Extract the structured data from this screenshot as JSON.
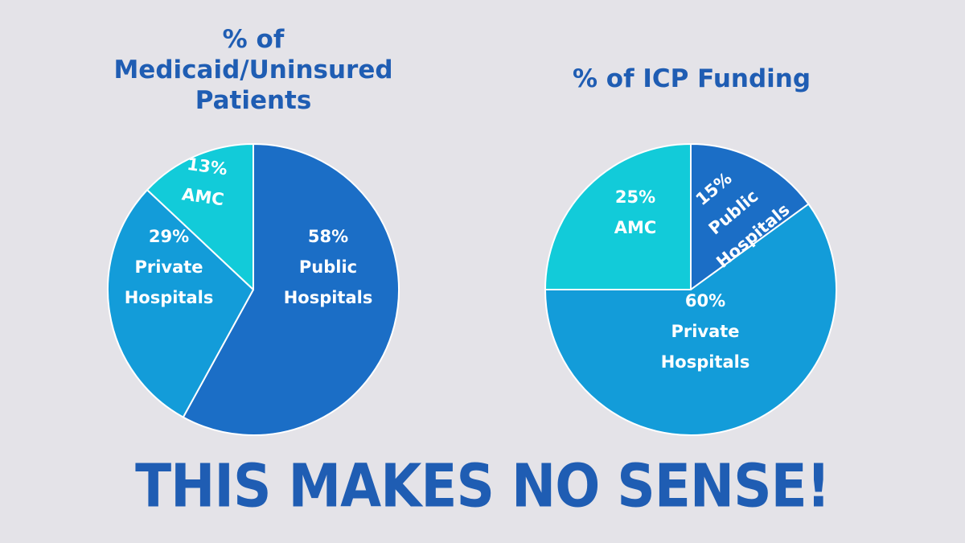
{
  "chart_data": [
    {
      "type": "pie",
      "title": "% of Medicaid/Uninsured Patients",
      "title_lines": [
        "% of",
        "Medicaid/Uninsured",
        "Patients"
      ],
      "slices": [
        {
          "label_lines": [
            "58%",
            "Public",
            "Hospitals"
          ],
          "value": 58,
          "color": "#1b6ec6"
        },
        {
          "label_lines": [
            "29%",
            "Private",
            "Hospitals"
          ],
          "value": 29,
          "color": "#139cd9"
        },
        {
          "label_lines": [
            "13%",
            "AMC"
          ],
          "value": 13,
          "color": "#12cbd9"
        }
      ]
    },
    {
      "type": "pie",
      "title": "% of ICP Funding",
      "title_lines": [
        "% of ICP Funding"
      ],
      "slices": [
        {
          "label_lines": [
            "15%",
            "Public",
            "Hospitals"
          ],
          "value": 15,
          "color": "#1b6ec6"
        },
        {
          "label_lines": [
            "60%",
            "Private",
            "Hospitals"
          ],
          "value": 60,
          "color": "#139cd9"
        },
        {
          "label_lines": [
            "25%",
            "AMC"
          ],
          "value": 25,
          "color": "#12cbd9"
        }
      ]
    }
  ],
  "headline": "THIS MAKES NO SENSE!",
  "colors": {
    "background": "#e4e3e8",
    "title_text": "#1f5db3",
    "slice_border": "#ffffff"
  }
}
